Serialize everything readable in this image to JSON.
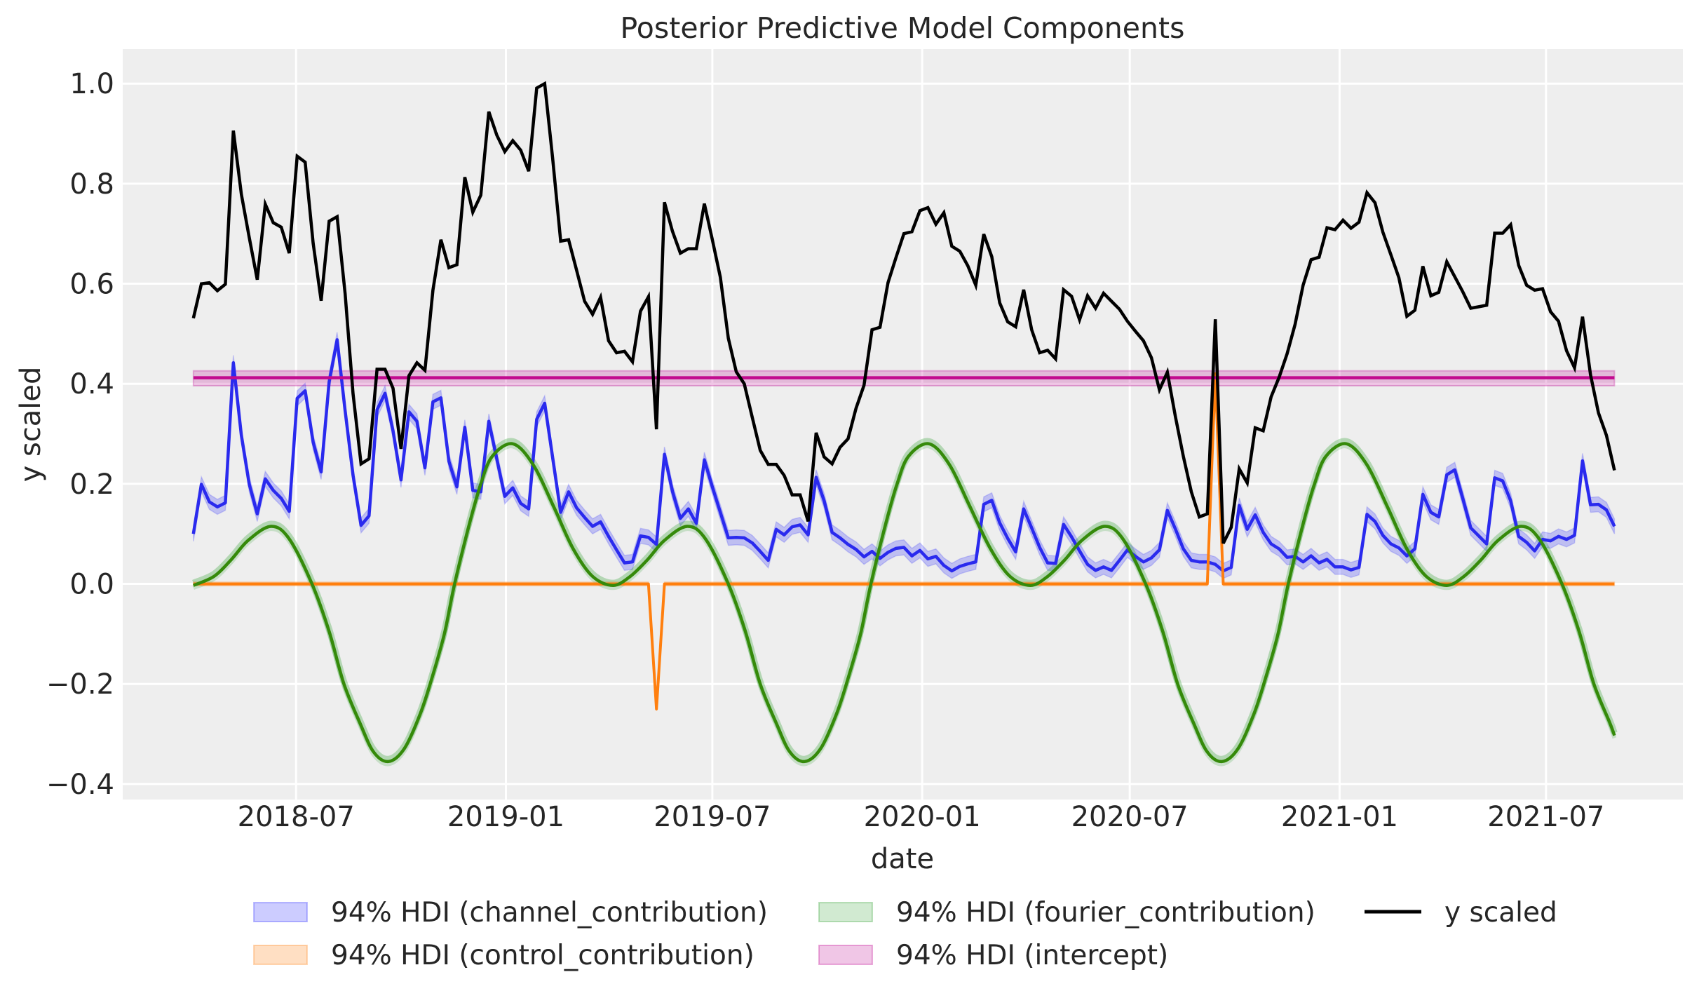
{
  "chart_data": {
    "type": "line",
    "title": "Posterior Predictive Model Components",
    "xlabel": "date",
    "ylabel": "y scaled",
    "xlim": [
      "2018-01-30",
      "2021-10-29"
    ],
    "ylim": [
      -0.431,
      1.069
    ],
    "grid": true,
    "background": "#eeeeee",
    "legend_position": "bottom-center",
    "x_ticks": [
      {
        "date": "2018-07-01",
        "label": "2018-07"
      },
      {
        "date": "2019-01-01",
        "label": "2019-01"
      },
      {
        "date": "2019-07-01",
        "label": "2019-07"
      },
      {
        "date": "2020-01-01",
        "label": "2020-01"
      },
      {
        "date": "2020-07-01",
        "label": "2020-07"
      },
      {
        "date": "2021-01-01",
        "label": "2021-01"
      },
      {
        "date": "2021-07-01",
        "label": "2021-07"
      }
    ],
    "y_ticks": [
      {
        "value": -0.4,
        "label": "−0.4"
      },
      {
        "value": -0.2,
        "label": "−0.2"
      },
      {
        "value": 0.0,
        "label": "0.0"
      },
      {
        "value": 0.2,
        "label": "0.2"
      },
      {
        "value": 0.4,
        "label": "0.4"
      },
      {
        "value": 0.6,
        "label": "0.6"
      },
      {
        "value": 0.8,
        "label": "0.8"
      },
      {
        "value": 1.0,
        "label": "1.0"
      }
    ],
    "dates": [
      "2018-04-02",
      "2018-04-09",
      "2018-04-16",
      "2018-04-23",
      "2018-04-30",
      "2018-05-07",
      "2018-05-14",
      "2018-05-21",
      "2018-05-28",
      "2018-06-04",
      "2018-06-11",
      "2018-06-18",
      "2018-06-25",
      "2018-07-02",
      "2018-07-09",
      "2018-07-16",
      "2018-07-23",
      "2018-07-30",
      "2018-08-06",
      "2018-08-13",
      "2018-08-20",
      "2018-08-27",
      "2018-09-03",
      "2018-09-10",
      "2018-09-17",
      "2018-09-24",
      "2018-10-01",
      "2018-10-08",
      "2018-10-15",
      "2018-10-22",
      "2018-10-29",
      "2018-11-05",
      "2018-11-12",
      "2018-11-19",
      "2018-11-26",
      "2018-12-03",
      "2018-12-10",
      "2018-12-17",
      "2018-12-24",
      "2018-12-31",
      "2019-01-07",
      "2019-01-14",
      "2019-01-21",
      "2019-01-28",
      "2019-02-04",
      "2019-02-11",
      "2019-02-18",
      "2019-02-25",
      "2019-03-04",
      "2019-03-11",
      "2019-03-18",
      "2019-03-25",
      "2019-04-01",
      "2019-04-08",
      "2019-04-15",
      "2019-04-22",
      "2019-04-29",
      "2019-05-06",
      "2019-05-13",
      "2019-05-20",
      "2019-05-27",
      "2019-06-03",
      "2019-06-10",
      "2019-06-17",
      "2019-06-24",
      "2019-07-01",
      "2019-07-08",
      "2019-07-15",
      "2019-07-22",
      "2019-07-29",
      "2019-08-05",
      "2019-08-12",
      "2019-08-19",
      "2019-08-26",
      "2019-09-02",
      "2019-09-09",
      "2019-09-16",
      "2019-09-23",
      "2019-09-30",
      "2019-10-07",
      "2019-10-14",
      "2019-10-21",
      "2019-10-28",
      "2019-11-04",
      "2019-11-11",
      "2019-11-18",
      "2019-11-25",
      "2019-12-02",
      "2019-12-09",
      "2019-12-16",
      "2019-12-23",
      "2019-12-30",
      "2020-01-06",
      "2020-01-13",
      "2020-01-20",
      "2020-01-27",
      "2020-02-03",
      "2020-02-10",
      "2020-02-17",
      "2020-02-24",
      "2020-03-02",
      "2020-03-09",
      "2020-03-16",
      "2020-03-23",
      "2020-03-30",
      "2020-04-06",
      "2020-04-13",
      "2020-04-20",
      "2020-04-27",
      "2020-05-04",
      "2020-05-11",
      "2020-05-18",
      "2020-05-25",
      "2020-06-01",
      "2020-06-08",
      "2020-06-15",
      "2020-06-22",
      "2020-06-29",
      "2020-07-06",
      "2020-07-13",
      "2020-07-20",
      "2020-07-27",
      "2020-08-03",
      "2020-08-10",
      "2020-08-17",
      "2020-08-24",
      "2020-08-31",
      "2020-09-07",
      "2020-09-14",
      "2020-09-21",
      "2020-09-28",
      "2020-10-05",
      "2020-10-12",
      "2020-10-19",
      "2020-10-26",
      "2020-11-02",
      "2020-11-09",
      "2020-11-16",
      "2020-11-23",
      "2020-11-30",
      "2020-12-07",
      "2020-12-14",
      "2020-12-21",
      "2020-12-28",
      "2021-01-04",
      "2021-01-11",
      "2021-01-18",
      "2021-01-25",
      "2021-02-01",
      "2021-02-08",
      "2021-02-15",
      "2021-02-22",
      "2021-03-01",
      "2021-03-08",
      "2021-03-15",
      "2021-03-22",
      "2021-03-29",
      "2021-04-05",
      "2021-04-12",
      "2021-04-19",
      "2021-04-26",
      "2021-05-03",
      "2021-05-10",
      "2021-05-17",
      "2021-05-24",
      "2021-05-31",
      "2021-06-07",
      "2021-06-14",
      "2021-06-21",
      "2021-06-28",
      "2021-07-05",
      "2021-07-12",
      "2021-07-19",
      "2021-07-26",
      "2021-08-02",
      "2021-08-09",
      "2021-08-16",
      "2021-08-23",
      "2021-08-30"
    ],
    "series": [
      {
        "key": "channel",
        "legend": "94% HDI (channel_contribution)",
        "color": "#2a2aee",
        "band_color": "#0000ff",
        "hdi_halfwidth": 0.015,
        "values": [
          0.1,
          0.199,
          0.164,
          0.154,
          0.162,
          0.442,
          0.297,
          0.199,
          0.14,
          0.21,
          0.187,
          0.171,
          0.145,
          0.371,
          0.386,
          0.283,
          0.224,
          0.404,
          0.488,
          0.346,
          0.217,
          0.117,
          0.136,
          0.348,
          0.381,
          0.306,
          0.208,
          0.344,
          0.325,
          0.232,
          0.364,
          0.372,
          0.245,
          0.194,
          0.313,
          0.187,
          0.184,
          0.325,
          0.25,
          0.175,
          0.192,
          0.161,
          0.15,
          0.329,
          0.361,
          0.252,
          0.143,
          0.184,
          0.152,
          0.133,
          0.115,
          0.124,
          0.095,
          0.068,
          0.042,
          0.044,
          0.096,
          0.093,
          0.079,
          0.259,
          0.185,
          0.131,
          0.15,
          0.121,
          0.248,
          0.194,
          0.143,
          0.092,
          0.093,
          0.092,
          0.082,
          0.065,
          0.047,
          0.109,
          0.098,
          0.114,
          0.118,
          0.098,
          0.213,
          0.166,
          0.103,
          0.092,
          0.079,
          0.069,
          0.054,
          0.065,
          0.051,
          0.063,
          0.071,
          0.073,
          0.056,
          0.067,
          0.05,
          0.055,
          0.037,
          0.026,
          0.035,
          0.04,
          0.044,
          0.159,
          0.167,
          0.122,
          0.091,
          0.064,
          0.15,
          0.112,
          0.073,
          0.042,
          0.041,
          0.119,
          0.094,
          0.066,
          0.039,
          0.027,
          0.034,
          0.027,
          0.047,
          0.068,
          0.055,
          0.044,
          0.052,
          0.068,
          0.147,
          0.11,
          0.07,
          0.047,
          0.044,
          0.044,
          0.039,
          0.026,
          0.033,
          0.157,
          0.109,
          0.138,
          0.103,
          0.08,
          0.07,
          0.053,
          0.055,
          0.044,
          0.056,
          0.042,
          0.049,
          0.034,
          0.034,
          0.028,
          0.033,
          0.139,
          0.125,
          0.097,
          0.08,
          0.072,
          0.056,
          0.07,
          0.179,
          0.143,
          0.134,
          0.218,
          0.228,
          0.171,
          0.112,
          0.096,
          0.08,
          0.212,
          0.206,
          0.166,
          0.095,
          0.083,
          0.066,
          0.089,
          0.086,
          0.095,
          0.089,
          0.097,
          0.246,
          0.158,
          0.159,
          0.148,
          0.115
        ]
      },
      {
        "key": "control",
        "legend": "94% HDI (control_contribution)",
        "color": "#ff7f0e",
        "band_color": "#ff7f0e",
        "hdi_halfwidth": 0.004,
        "values": [
          0,
          0,
          0,
          0,
          0,
          0,
          0,
          0,
          0,
          0,
          0,
          0,
          0,
          0,
          0,
          0,
          0,
          0,
          0,
          0,
          0,
          0,
          0,
          0,
          0,
          0,
          0,
          0,
          0,
          0,
          0,
          0,
          0,
          0,
          0,
          0,
          0,
          0,
          0,
          0,
          0,
          0,
          0,
          0,
          0,
          0,
          0,
          0,
          0,
          0,
          0,
          0,
          0,
          0,
          0,
          0,
          0,
          0,
          -0.25,
          0,
          0,
          0,
          0,
          0,
          0,
          0,
          0,
          0,
          0,
          0,
          0,
          0,
          0,
          0,
          0,
          0,
          0,
          0,
          0,
          0,
          0,
          0,
          0,
          0,
          0,
          0,
          0,
          0,
          0,
          0,
          0,
          0,
          0,
          0,
          0,
          0,
          0,
          0,
          0,
          0,
          0,
          0,
          0,
          0,
          0,
          0,
          0,
          0,
          0,
          0,
          0,
          0,
          0,
          0,
          0,
          0,
          0,
          0,
          0,
          0,
          0,
          0,
          0,
          0,
          0,
          0,
          0,
          0,
          0.42,
          0,
          0,
          0,
          0,
          0,
          0,
          0,
          0,
          0,
          0,
          0,
          0,
          0,
          0,
          0,
          0,
          0,
          0,
          0,
          0,
          0,
          0,
          0,
          0,
          0,
          0,
          0,
          0,
          0,
          0,
          0,
          0,
          0,
          0,
          0,
          0,
          0,
          0,
          0,
          0,
          0,
          0,
          0,
          0,
          0,
          0,
          0,
          0,
          0,
          0
        ]
      },
      {
        "key": "y",
        "legend": "y scaled",
        "color": "#000000",
        "values": [
          0.531,
          0.6,
          0.602,
          0.586,
          0.599,
          0.906,
          0.779,
          0.692,
          0.608,
          0.759,
          0.722,
          0.713,
          0.661,
          0.855,
          0.843,
          0.681,
          0.566,
          0.725,
          0.734,
          0.58,
          0.38,
          0.24,
          0.25,
          0.429,
          0.429,
          0.391,
          0.27,
          0.416,
          0.442,
          0.427,
          0.587,
          0.688,
          0.632,
          0.638,
          0.813,
          0.743,
          0.777,
          0.944,
          0.897,
          0.864,
          0.886,
          0.867,
          0.825,
          0.991,
          1.0,
          0.85,
          0.685,
          0.688,
          0.627,
          0.565,
          0.539,
          0.573,
          0.486,
          0.462,
          0.465,
          0.444,
          0.545,
          0.574,
          0.309,
          0.763,
          0.705,
          0.661,
          0.67,
          0.67,
          0.76,
          0.688,
          0.613,
          0.491,
          0.424,
          0.4,
          0.333,
          0.267,
          0.239,
          0.239,
          0.217,
          0.178,
          0.178,
          0.125,
          0.302,
          0.254,
          0.24,
          0.273,
          0.29,
          0.351,
          0.397,
          0.508,
          0.513,
          0.602,
          0.652,
          0.7,
          0.704,
          0.746,
          0.752,
          0.719,
          0.742,
          0.675,
          0.665,
          0.636,
          0.597,
          0.699,
          0.654,
          0.562,
          0.524,
          0.514,
          0.588,
          0.508,
          0.462,
          0.467,
          0.45,
          0.588,
          0.575,
          0.528,
          0.576,
          0.551,
          0.581,
          0.565,
          0.549,
          0.525,
          0.505,
          0.486,
          0.452,
          0.388,
          0.423,
          0.335,
          0.255,
          0.184,
          0.134,
          0.14,
          0.529,
          0.081,
          0.113,
          0.23,
          0.202,
          0.312,
          0.306,
          0.374,
          0.413,
          0.46,
          0.519,
          0.597,
          0.648,
          0.653,
          0.712,
          0.708,
          0.727,
          0.711,
          0.723,
          0.782,
          0.762,
          0.703,
          0.658,
          0.612,
          0.535,
          0.547,
          0.635,
          0.576,
          0.583,
          0.644,
          0.614,
          0.584,
          0.551,
          0.554,
          0.557,
          0.701,
          0.701,
          0.718,
          0.637,
          0.597,
          0.587,
          0.59,
          0.544,
          0.525,
          0.466,
          0.432,
          0.534,
          0.418,
          0.342,
          0.297,
          0.227
        ]
      }
    ],
    "fourier": {
      "key": "fourier",
      "legend": "94% HDI (fourier_contribution)",
      "color": "#358a0a",
      "band_color": "#2ca02c",
      "hdi_halfwidth": 0.005,
      "points": [
        [
          "2018-04-02",
          -0.003
        ],
        [
          "2018-04-20",
          0.015
        ],
        [
          "2018-05-05",
          0.048
        ],
        [
          "2018-05-20",
          0.087
        ],
        [
          "2018-06-09",
          0.115
        ],
        [
          "2018-06-25",
          0.09
        ],
        [
          "2018-07-15",
          0.0
        ],
        [
          "2018-07-30",
          -0.095
        ],
        [
          "2018-08-12",
          -0.2
        ],
        [
          "2018-08-26",
          -0.278
        ],
        [
          "2018-09-07",
          -0.336
        ],
        [
          "2018-09-20",
          -0.355
        ],
        [
          "2018-10-04",
          -0.329
        ],
        [
          "2018-10-18",
          -0.259
        ],
        [
          "2018-10-28",
          -0.189
        ],
        [
          "2018-11-08",
          -0.1
        ],
        [
          "2018-11-17",
          0.0
        ],
        [
          "2018-11-30",
          0.12
        ],
        [
          "2018-12-10",
          0.2
        ],
        [
          "2018-12-20",
          0.255
        ],
        [
          "2019-01-07",
          0.28
        ],
        [
          "2019-01-25",
          0.238
        ],
        [
          "2019-02-12",
          0.154
        ],
        [
          "2019-03-01",
          0.07
        ],
        [
          "2019-03-18",
          0.015
        ],
        [
          "2019-04-05",
          -0.003
        ],
        [
          "2019-04-20",
          0.015
        ],
        [
          "2019-05-05",
          0.048
        ],
        [
          "2019-05-20",
          0.087
        ],
        [
          "2019-06-09",
          0.115
        ],
        [
          "2019-06-25",
          0.09
        ],
        [
          "2019-07-15",
          0.0
        ],
        [
          "2019-07-30",
          -0.095
        ],
        [
          "2019-08-12",
          -0.2
        ],
        [
          "2019-08-26",
          -0.278
        ],
        [
          "2019-09-07",
          -0.336
        ],
        [
          "2019-09-20",
          -0.355
        ],
        [
          "2019-10-04",
          -0.329
        ],
        [
          "2019-10-18",
          -0.259
        ],
        [
          "2019-10-28",
          -0.189
        ],
        [
          "2019-11-08",
          -0.1
        ],
        [
          "2019-11-17",
          0.0
        ],
        [
          "2019-11-30",
          0.12
        ],
        [
          "2019-12-10",
          0.2
        ],
        [
          "2019-12-20",
          0.255
        ],
        [
          "2020-01-07",
          0.28
        ],
        [
          "2020-01-25",
          0.238
        ],
        [
          "2020-02-12",
          0.154
        ],
        [
          "2020-03-01",
          0.07
        ],
        [
          "2020-03-18",
          0.015
        ],
        [
          "2020-04-05",
          -0.003
        ],
        [
          "2020-04-20",
          0.015
        ],
        [
          "2020-05-05",
          0.048
        ],
        [
          "2020-05-20",
          0.087
        ],
        [
          "2020-06-09",
          0.115
        ],
        [
          "2020-06-25",
          0.09
        ],
        [
          "2020-07-15",
          0.0
        ],
        [
          "2020-07-30",
          -0.095
        ],
        [
          "2020-08-12",
          -0.2
        ],
        [
          "2020-08-26",
          -0.278
        ],
        [
          "2020-09-07",
          -0.336
        ],
        [
          "2020-09-20",
          -0.355
        ],
        [
          "2020-10-04",
          -0.329
        ],
        [
          "2020-10-18",
          -0.259
        ],
        [
          "2020-10-28",
          -0.189
        ],
        [
          "2020-11-08",
          -0.1
        ],
        [
          "2020-11-17",
          0.0
        ],
        [
          "2020-11-30",
          0.12
        ],
        [
          "2020-12-10",
          0.2
        ],
        [
          "2020-12-20",
          0.255
        ],
        [
          "2021-01-07",
          0.28
        ],
        [
          "2021-01-25",
          0.238
        ],
        [
          "2021-02-12",
          0.154
        ],
        [
          "2021-03-01",
          0.07
        ],
        [
          "2021-03-18",
          0.015
        ],
        [
          "2021-04-05",
          -0.003
        ],
        [
          "2021-04-20",
          0.015
        ],
        [
          "2021-05-05",
          0.048
        ],
        [
          "2021-05-20",
          0.087
        ],
        [
          "2021-06-09",
          0.115
        ],
        [
          "2021-06-25",
          0.09
        ],
        [
          "2021-07-15",
          0.0
        ],
        [
          "2021-07-30",
          -0.095
        ],
        [
          "2021-08-12",
          -0.2
        ],
        [
          "2021-08-26",
          -0.278
        ],
        [
          "2021-08-30",
          -0.303
        ]
      ]
    },
    "intercept": {
      "key": "intercept",
      "legend": "94% HDI (intercept)",
      "color": "#c20a8e",
      "band_color": "#c51b9a",
      "value": 0.412,
      "hdi": [
        0.396,
        0.426
      ]
    }
  }
}
